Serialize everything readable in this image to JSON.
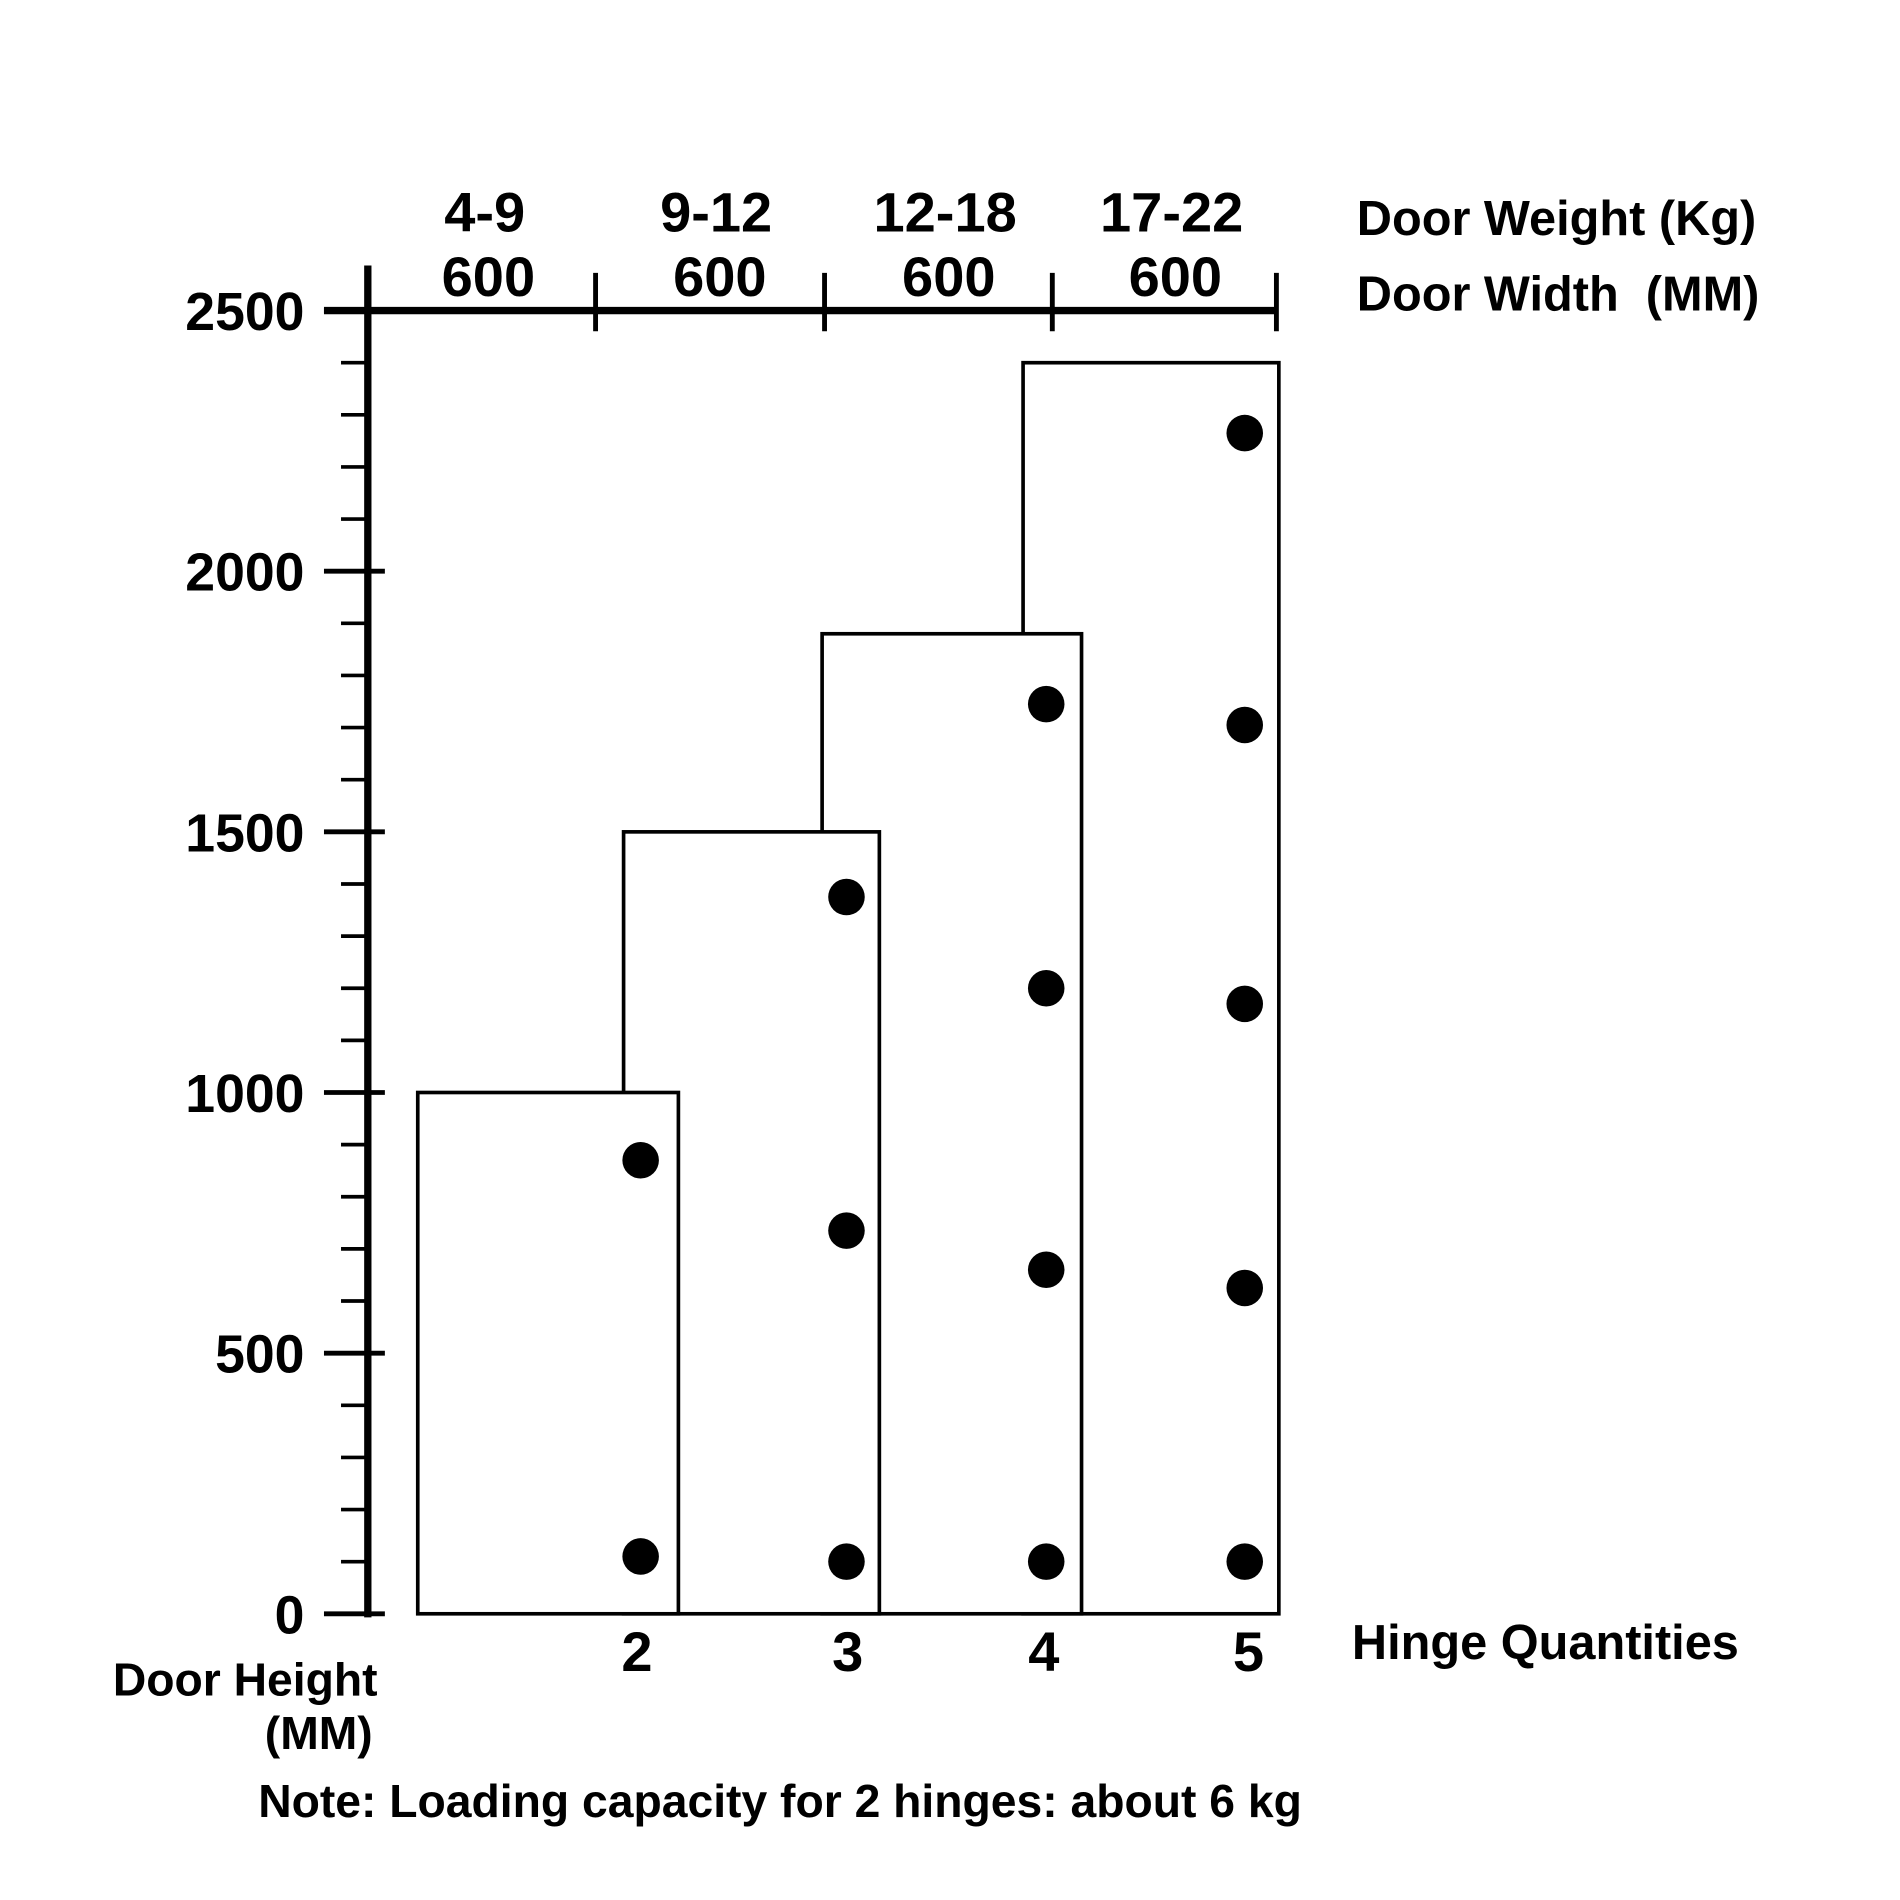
{
  "chart_data": {
    "type": "bar",
    "ylabel_line1": "Door Height",
    "ylabel_line2": "(MM)",
    "xlabel": "Hinge Quantities",
    "top_label_weight": "Door Weight (Kg)",
    "top_label_width": "Door Width  (MM)",
    "ylim": [
      0,
      2500
    ],
    "yticks": [
      "0",
      "500",
      "1000",
      "1500",
      "2000",
      "2500"
    ],
    "minor_tick_step": 100,
    "categories": [
      "2",
      "3",
      "4",
      "5"
    ],
    "door_weight": [
      "4-9",
      "9-12",
      "12-18",
      "17-22"
    ],
    "door_width": [
      "600",
      "600",
      "600",
      "600"
    ],
    "door_height": [
      1000,
      1500,
      1880,
      2400
    ],
    "hinge_positions": [
      [
        870,
        110
      ],
      [
        1375,
        735,
        100
      ],
      [
        1745,
        1200,
        660,
        100
      ],
      [
        2265,
        1705,
        1170,
        625,
        100
      ]
    ],
    "note": "Note: Loading capacity for 2 hinges: about 6 kg",
    "note_color": "#ff0000"
  }
}
